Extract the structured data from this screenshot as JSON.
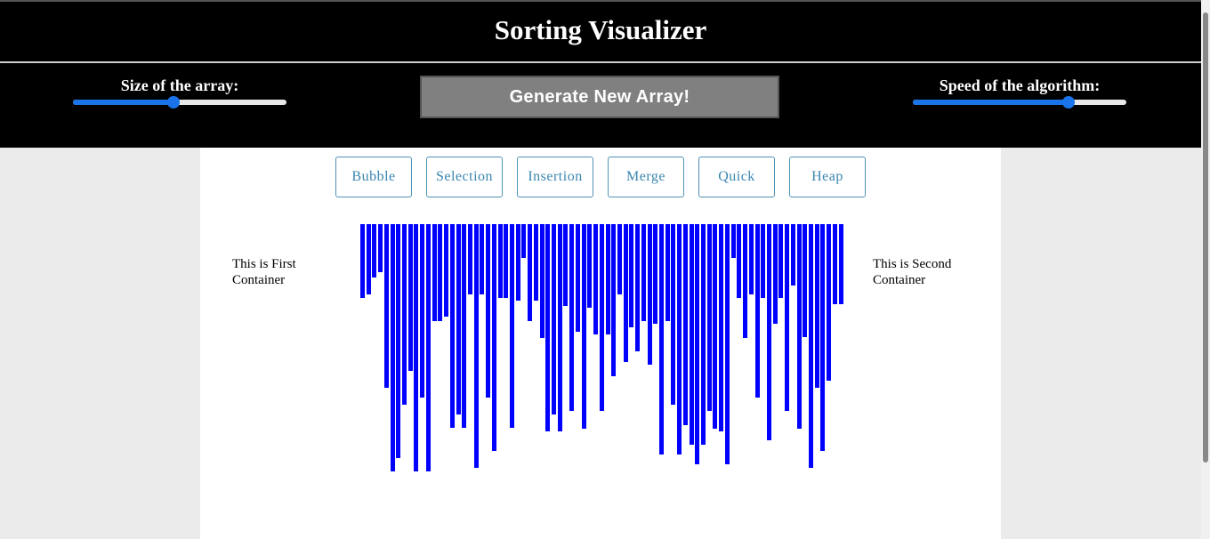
{
  "header": {
    "title": "Sorting Visualizer"
  },
  "controls": {
    "size_label": "Size of the array:",
    "size_value_fraction": 0.47,
    "generate_label": "Generate New Array!",
    "speed_label": "Speed of the algorithm:",
    "speed_value_fraction": 0.73
  },
  "algorithms": [
    "Bubble",
    "Selection",
    "Insertion",
    "Merge",
    "Quick",
    "Heap"
  ],
  "containers": {
    "first": "This is First Container",
    "second": "This is Second Container"
  },
  "colors": {
    "bar": "#0000ff",
    "accent": "#1a73e8",
    "algo_border": "#4f93b5"
  },
  "array_values": [
    83,
    79,
    60,
    54,
    184,
    278,
    263,
    203,
    165,
    278,
    195,
    278,
    109,
    109,
    104,
    229,
    214,
    229,
    79,
    274,
    79,
    195,
    255,
    83,
    83,
    229,
    86,
    38,
    109,
    86,
    128,
    233,
    214,
    233,
    92,
    210,
    121,
    230,
    94,
    124,
    210,
    124,
    171,
    79,
    155,
    116,
    143,
    109,
    158,
    112,
    259,
    109,
    203,
    259,
    226,
    248,
    270,
    248,
    210,
    230,
    233,
    270,
    38,
    83,
    128,
    79,
    195,
    83,
    243,
    112,
    83,
    210,
    69,
    230,
    127,
    274,
    184,
    255,
    176,
    90,
    90
  ]
}
